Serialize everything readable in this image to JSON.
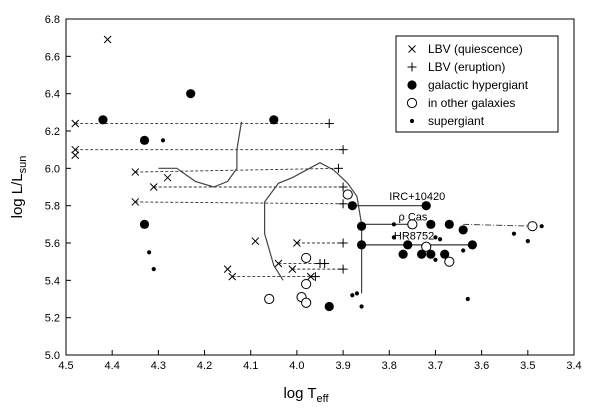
{
  "chart_data": {
    "type": "scatter",
    "title": "",
    "xlabel": {
      "main": "log T",
      "sub": "eff"
    },
    "ylabel": {
      "main": "log L/L",
      "sub": "sun"
    },
    "xlim": [
      4.5,
      3.4
    ],
    "ylim": [
      5.0,
      6.8
    ],
    "x_ticks": [
      "4.5",
      "4.4",
      "4.3",
      "4.2",
      "4.1",
      "4.0",
      "3.9",
      "3.8",
      "3.7",
      "3.6",
      "3.5",
      "3.4"
    ],
    "y_ticks": [
      "5.0",
      "5.2",
      "5.4",
      "5.6",
      "5.8",
      "6.0",
      "6.2",
      "6.4",
      "6.6",
      "6.8"
    ],
    "x_tick_values": [
      4.5,
      4.4,
      4.3,
      4.2,
      4.1,
      4.0,
      3.9,
      3.8,
      3.7,
      3.6,
      3.5,
      3.4
    ],
    "y_tick_values": [
      5.0,
      5.2,
      5.4,
      5.6,
      5.8,
      6.0,
      6.2,
      6.4,
      6.6,
      6.8
    ],
    "legend": {
      "position": "top-right",
      "entries": [
        {
          "symbol": "x",
          "label": "LBV (quiescence)"
        },
        {
          "symbol": "plus",
          "label": "LBV (eruption)"
        },
        {
          "symbol": "filled-large",
          "label": "galactic hypergiant"
        },
        {
          "symbol": "open",
          "label": "in other galaxies"
        },
        {
          "symbol": "filled-small",
          "label": "supergiant"
        }
      ]
    },
    "series": [
      {
        "name": "LBV (quiescence)",
        "marker": "x",
        "points": [
          [
            4.41,
            6.69
          ],
          [
            4.48,
            6.24
          ],
          [
            4.48,
            6.1
          ],
          [
            4.48,
            6.07
          ],
          [
            4.35,
            5.98
          ],
          [
            4.28,
            5.95
          ],
          [
            4.31,
            5.9
          ],
          [
            4.35,
            5.82
          ],
          [
            4.09,
            5.61
          ],
          [
            4.15,
            5.46
          ],
          [
            4.14,
            5.42
          ],
          [
            4.04,
            5.49
          ],
          [
            4.01,
            5.46
          ],
          [
            4.0,
            5.6
          ],
          [
            3.97,
            5.42
          ]
        ]
      },
      {
        "name": "LBV (eruption)",
        "marker": "plus",
        "points": [
          [
            3.93,
            6.24
          ],
          [
            3.9,
            6.1
          ],
          [
            3.91,
            6.0
          ],
          [
            3.9,
            5.9
          ],
          [
            3.9,
            5.81
          ],
          [
            3.9,
            5.6
          ],
          [
            3.95,
            5.49
          ],
          [
            3.94,
            5.49
          ],
          [
            3.96,
            5.42
          ],
          [
            3.9,
            5.46
          ]
        ]
      },
      {
        "name": "galactic hypergiant",
        "marker": "filled-large",
        "points": [
          [
            4.42,
            6.26
          ],
          [
            4.23,
            6.4
          ],
          [
            4.05,
            6.26
          ],
          [
            4.33,
            6.15
          ],
          [
            4.33,
            5.7
          ],
          [
            3.88,
            5.8
          ],
          [
            3.72,
            5.8
          ],
          [
            3.86,
            5.69
          ],
          [
            3.71,
            5.7
          ],
          [
            3.67,
            5.7
          ],
          [
            3.64,
            5.67
          ],
          [
            3.62,
            5.59
          ],
          [
            3.86,
            5.59
          ],
          [
            3.76,
            5.59
          ],
          [
            3.77,
            5.54
          ],
          [
            3.71,
            5.54
          ],
          [
            3.73,
            5.54
          ],
          [
            3.68,
            5.54
          ],
          [
            3.93,
            5.26
          ]
        ]
      },
      {
        "name": "in other galaxies",
        "marker": "open",
        "points": [
          [
            3.89,
            5.86
          ],
          [
            3.75,
            5.7
          ],
          [
            3.72,
            5.58
          ],
          [
            3.67,
            5.5
          ],
          [
            3.49,
            5.69
          ],
          [
            3.98,
            5.52
          ],
          [
            3.98,
            5.38
          ],
          [
            3.99,
            5.31
          ],
          [
            3.98,
            5.28
          ],
          [
            4.06,
            5.3
          ]
        ]
      },
      {
        "name": "supergiant",
        "marker": "filled-small",
        "points": [
          [
            4.29,
            6.15
          ],
          [
            4.32,
            5.55
          ],
          [
            4.31,
            5.46
          ],
          [
            3.87,
            5.33
          ],
          [
            3.88,
            5.32
          ],
          [
            3.86,
            5.26
          ],
          [
            3.79,
            5.7
          ],
          [
            3.79,
            5.63
          ],
          [
            3.7,
            5.63
          ],
          [
            3.69,
            5.62
          ],
          [
            3.7,
            5.51
          ],
          [
            3.64,
            5.56
          ],
          [
            3.63,
            5.3
          ],
          [
            3.53,
            5.65
          ],
          [
            3.5,
            5.61
          ],
          [
            3.47,
            5.69
          ]
        ]
      }
    ],
    "dashed_tracks": [
      {
        "from": [
          4.48,
          6.24
        ],
        "to": [
          3.93,
          6.24
        ]
      },
      {
        "from": [
          4.48,
          6.1
        ],
        "to": [
          3.9,
          6.1
        ]
      },
      {
        "from": [
          4.35,
          5.98
        ],
        "to": [
          3.91,
          6.0
        ]
      },
      {
        "from": [
          4.31,
          5.9
        ],
        "to": [
          3.9,
          5.9
        ]
      },
      {
        "from": [
          4.35,
          5.82
        ],
        "to": [
          3.9,
          5.81
        ]
      },
      {
        "from": [
          4.0,
          5.6
        ],
        "to": [
          3.9,
          5.6
        ]
      },
      {
        "from": [
          4.04,
          5.49
        ],
        "to": [
          3.94,
          5.49
        ]
      },
      {
        "from": [
          4.01,
          5.46
        ],
        "to": [
          3.9,
          5.46
        ]
      },
      {
        "from": [
          4.14,
          5.42
        ],
        "to": [
          3.96,
          5.42
        ]
      }
    ],
    "dashdot_tracks": [
      {
        "from": [
          3.64,
          5.7
        ],
        "to": [
          3.49,
          5.69
        ]
      }
    ],
    "solid_tracks": [
      {
        "from": [
          3.88,
          5.8
        ],
        "to": [
          3.72,
          5.8
        ]
      },
      {
        "from": [
          3.86,
          5.7
        ],
        "to": [
          3.75,
          5.7
        ]
      },
      {
        "from": [
          3.86,
          5.59
        ],
        "to": [
          3.62,
          5.59
        ]
      }
    ],
    "boundary_curves": [
      {
        "name": "left",
        "points": [
          [
            4.3,
            6.0
          ],
          [
            4.26,
            6.0
          ],
          [
            4.22,
            5.93
          ],
          [
            4.18,
            5.9
          ],
          [
            4.15,
            5.93
          ],
          [
            4.13,
            6.0
          ],
          [
            4.13,
            6.1
          ],
          [
            4.12,
            6.25
          ]
        ]
      },
      {
        "name": "right",
        "points": [
          [
            3.86,
            5.33
          ],
          [
            3.86,
            5.55
          ],
          [
            3.86,
            5.7
          ],
          [
            3.87,
            5.85
          ],
          [
            3.89,
            5.92
          ],
          [
            3.92,
            5.99
          ],
          [
            3.95,
            6.03
          ],
          [
            3.98,
            5.99
          ],
          [
            4.01,
            5.95
          ],
          [
            4.04,
            5.92
          ],
          [
            4.07,
            5.82
          ],
          [
            4.07,
            5.65
          ],
          [
            4.05,
            5.48
          ],
          [
            4.03,
            5.4
          ]
        ]
      }
    ],
    "annotations": [
      {
        "text": "IRC+10420",
        "at": [
          3.8,
          5.83
        ]
      },
      {
        "text": "ρ Cas",
        "at": [
          3.78,
          5.72
        ]
      },
      {
        "text": "HR8752",
        "at": [
          3.79,
          5.62
        ]
      }
    ]
  }
}
